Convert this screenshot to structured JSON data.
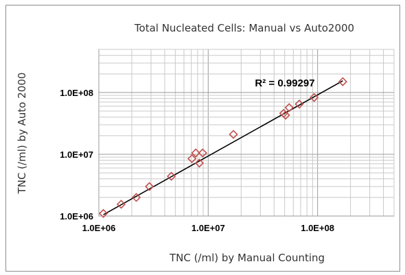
{
  "chart_data": {
    "type": "scatter",
    "title": "Total Nucleated Cells:  Manual vs Auto2000",
    "xlabel": "TNC (/ml) by Manual Counting",
    "ylabel": "TNC (/ml)  by Auto 2000",
    "x_scale": "log",
    "y_scale": "log",
    "xlim": [
      1000000,
      500000000
    ],
    "ylim": [
      1000000,
      500000000
    ],
    "x_ticks": [
      "1.0E+06",
      "1.0E+07",
      "1.0E+08"
    ],
    "y_ticks": [
      "1.0E+06",
      "1.0E+07",
      "1.0E+08"
    ],
    "grid": true,
    "legend": "none",
    "annotation": "R² = 0.99297",
    "marker_color": "#c0504d",
    "trendline_color": "#000000",
    "series": [
      {
        "points": [
          [
            1100000,
            1100000
          ],
          [
            1600000,
            1550000
          ],
          [
            2200000,
            2000000
          ],
          [
            2900000,
            3000000
          ],
          [
            4600000,
            4400000
          ],
          [
            7100000,
            8500000
          ],
          [
            7700000,
            10500000
          ],
          [
            8300000,
            7200000
          ],
          [
            8900000,
            10500000
          ],
          [
            17000000,
            21000000
          ],
          [
            49000000,
            46000000
          ],
          [
            51000000,
            43000000
          ],
          [
            55000000,
            57000000
          ],
          [
            68000000,
            65000000
          ],
          [
            93000000,
            83000000
          ],
          [
            170000000,
            150000000
          ]
        ]
      }
    ],
    "trendline": {
      "type": "power",
      "points": [
        [
          1100000,
          1050000
        ],
        [
          170000000,
          155000000
        ]
      ]
    }
  }
}
